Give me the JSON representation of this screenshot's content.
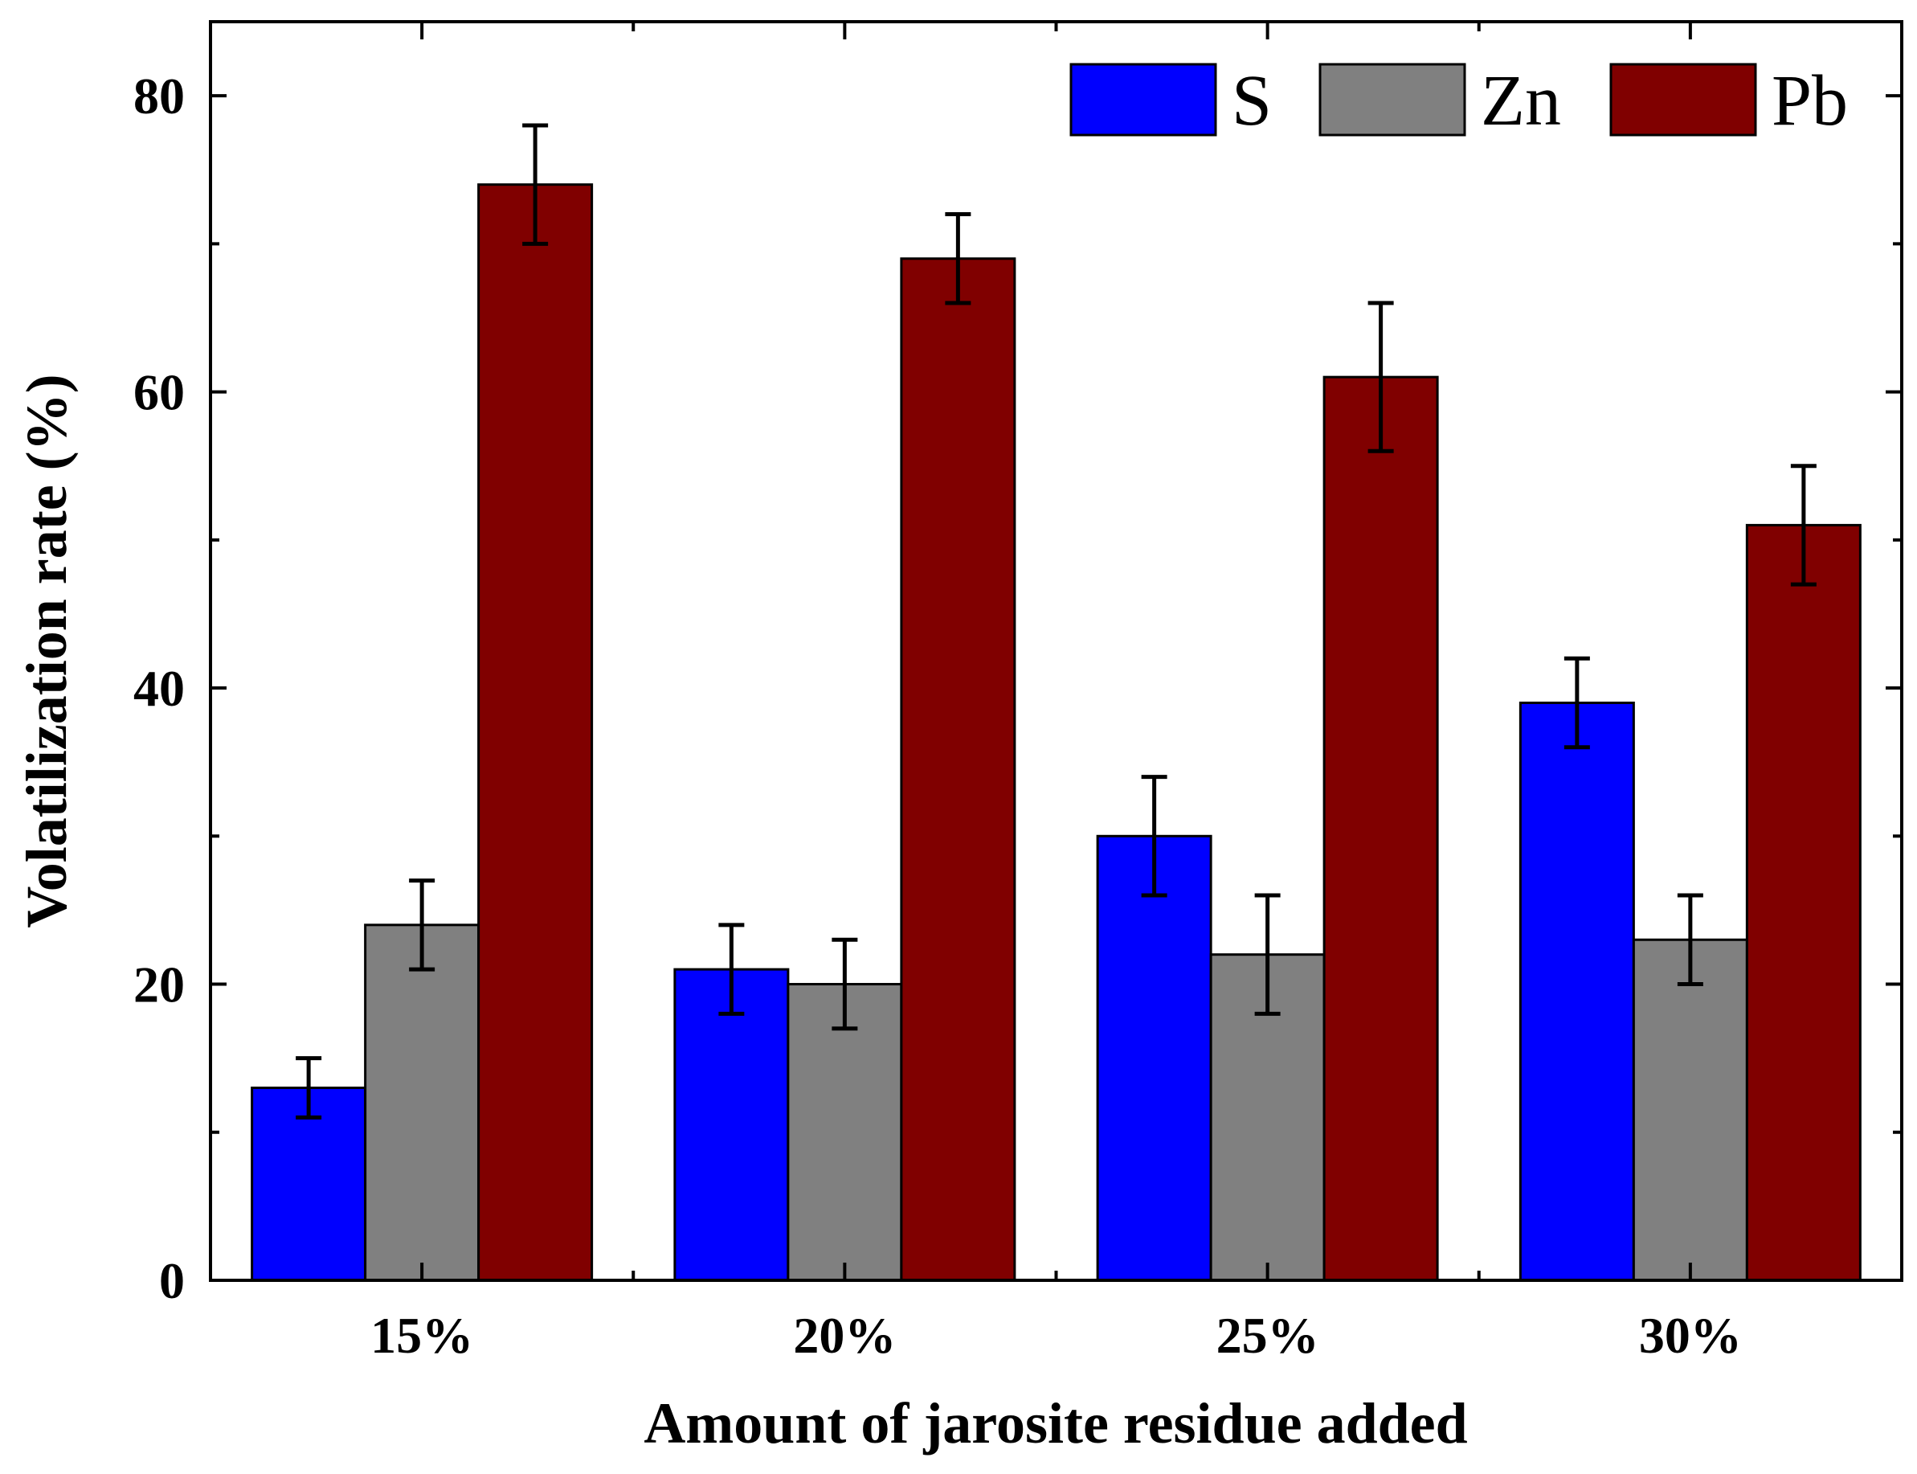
{
  "chart_data": {
    "type": "bar",
    "title": "",
    "xlabel": "Amount of jarosite residue added",
    "ylabel": "Volatilization rate (%)",
    "ylim": [
      0,
      85
    ],
    "yticks": [
      0,
      20,
      40,
      60,
      80
    ],
    "grid": false,
    "legend_position": "top-right",
    "categories": [
      "15%",
      "20%",
      "25%",
      "30%"
    ],
    "series": [
      {
        "name": "S",
        "color": "#0000ff",
        "values": [
          13,
          21,
          30,
          39
        ],
        "errors": [
          2,
          3,
          4,
          3
        ]
      },
      {
        "name": "Zn",
        "color": "#808080",
        "values": [
          24,
          20,
          22,
          23
        ],
        "errors": [
          3,
          3,
          4,
          3
        ]
      },
      {
        "name": "Pb",
        "color": "#800000",
        "values": [
          74,
          69,
          61,
          51
        ],
        "errors": [
          4,
          3,
          5,
          4
        ]
      }
    ]
  }
}
